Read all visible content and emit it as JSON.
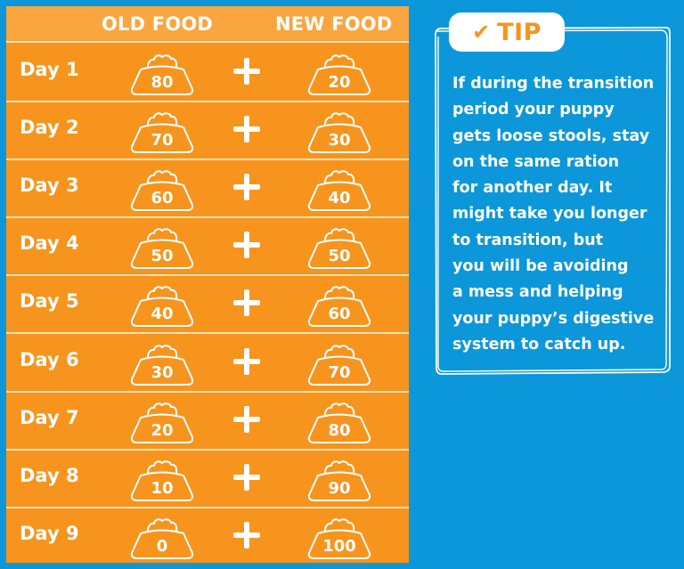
{
  "table": {
    "headers": {
      "old_food": "OLD FOOD",
      "new_food": "NEW FOOD"
    },
    "operator_icon": "plus-icon",
    "bowl_icon": "food-bowl-icon",
    "rows": [
      {
        "day": "Day 1",
        "old": "80",
        "new": "20"
      },
      {
        "day": "Day 2",
        "old": "70",
        "new": "30"
      },
      {
        "day": "Day 3",
        "old": "60",
        "new": "40"
      },
      {
        "day": "Day 4",
        "old": "50",
        "new": "50"
      },
      {
        "day": "Day 5",
        "old": "40",
        "new": "60"
      },
      {
        "day": "Day 6",
        "old": "30",
        "new": "70"
      },
      {
        "day": "Day 7",
        "old": "20",
        "new": "80"
      },
      {
        "day": "Day 8",
        "old": "10",
        "new": "90"
      },
      {
        "day": "Day 9",
        "old": "0",
        "new": "100"
      }
    ]
  },
  "tip": {
    "check_icon": "✔",
    "title": "TIP",
    "lines": [
      "If during the transition",
      "period your puppy",
      "gets loose stools, stay",
      "on the same ration",
      "for another day. It",
      "might take you longer",
      "to transition, but",
      "you will be avoiding",
      "a mess and helping",
      "your puppy’s digestive",
      "system to catch up."
    ]
  },
  "colors": {
    "background_blue": "#0B97D9",
    "row_orange": "#F7941D",
    "header_orange": "#F9A540",
    "divider_cream": "#FCE3B8",
    "white": "#FFFFFF"
  }
}
